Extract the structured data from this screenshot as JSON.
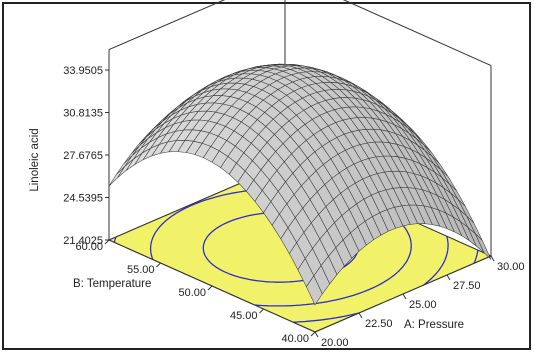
{
  "chart_data": {
    "type": "surface",
    "zlabel": "Linoleic acid",
    "xlabel": "A: Pressure",
    "ylabel": "B: Temperature",
    "z_ticks": [
      "21.4025",
      "24.5395",
      "27.6765",
      "30.8135",
      "33.9505"
    ],
    "zlim": [
      21.4025,
      33.9505
    ],
    "x_ticks": [
      "20.00",
      "22.50",
      "25.00",
      "27.50",
      "30.00"
    ],
    "xlim": [
      20,
      30
    ],
    "y_ticks": [
      "40.00",
      "45.00",
      "50.00",
      "55.00",
      "60.00"
    ],
    "ylim": [
      40,
      60
    ],
    "optimum": {
      "pressure": 24.5,
      "temperature": 51,
      "linoleic_acid": 33.9505
    },
    "corner_values": [
      {
        "pressure": 20,
        "temperature": 40,
        "linoleic_acid": 23.4
      },
      {
        "pressure": 30,
        "temperature": 40,
        "linoleic_acid": 21.4025
      },
      {
        "pressure": 30,
        "temperature": 60,
        "linoleic_acid": 24.2
      },
      {
        "pressure": 20,
        "temperature": 60,
        "linoleic_acid": 25.0
      }
    ],
    "floor_color": "#f2f26a",
    "contour_color": "#2c2ccf",
    "surface_color": "#c8c8c8"
  }
}
